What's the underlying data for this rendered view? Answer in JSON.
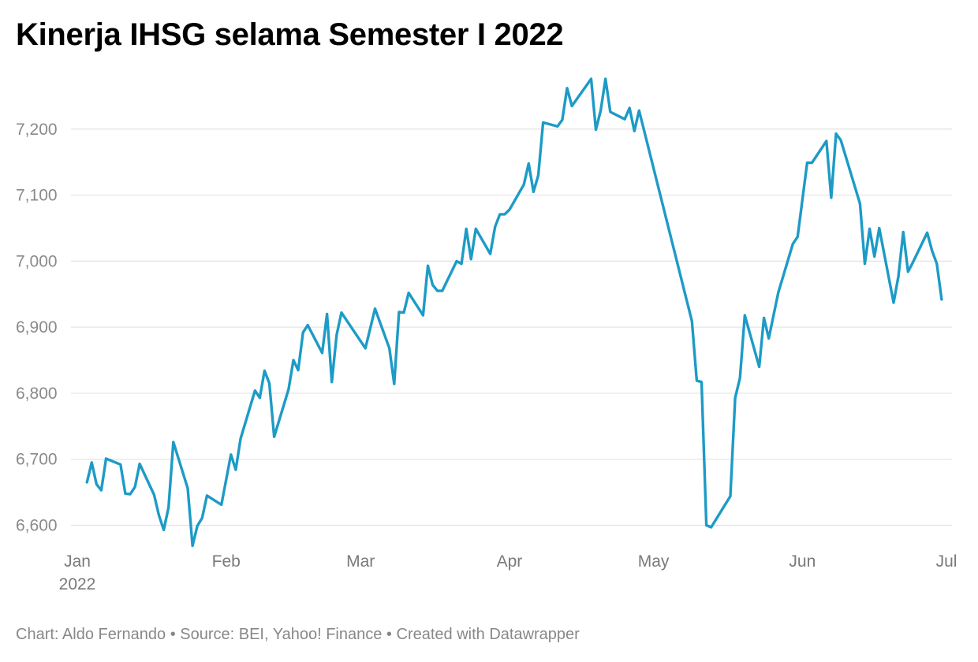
{
  "title": "Kinerja IHSG selama Semester I 2022",
  "footer": {
    "chart_credit": "Chart: Aldo Fernando",
    "source": "Source: BEI, Yahoo! Finance",
    "made_with": "Created with Datawrapper",
    "separator": "•"
  },
  "colors": {
    "line": "#1d9bc6",
    "grid": "#e3e3e3",
    "tick_text": "#8a8a8a"
  },
  "chart_data": {
    "type": "line",
    "title": "Kinerja IHSG selama Semester I 2022",
    "xlabel": "",
    "ylabel": "",
    "ylim": [
      6560,
      7300
    ],
    "xlim": [
      "2022-01-01",
      "2022-07-01"
    ],
    "grid": true,
    "yticks": [
      6600,
      6700,
      6800,
      6900,
      7000,
      7100,
      7200
    ],
    "ytick_labels": [
      "6,600",
      "6,700",
      "6,800",
      "6,900",
      "7,000",
      "7,100",
      "7,200"
    ],
    "xticks": [
      {
        "date": "2022-01-01",
        "label": "Jan",
        "sublabel": "2022"
      },
      {
        "date": "2022-02-01",
        "label": "Feb",
        "sublabel": ""
      },
      {
        "date": "2022-03-01",
        "label": "Mar",
        "sublabel": ""
      },
      {
        "date": "2022-04-01",
        "label": "Apr",
        "sublabel": ""
      },
      {
        "date": "2022-05-01",
        "label": "May",
        "sublabel": ""
      },
      {
        "date": "2022-06-01",
        "label": "Jun",
        "sublabel": ""
      },
      {
        "date": "2022-07-01",
        "label": "Jul",
        "sublabel": ""
      }
    ],
    "series": [
      {
        "dates": [
          "2022-01-03",
          "2022-01-04",
          "2022-01-05",
          "2022-01-06",
          "2022-01-07",
          "2022-01-10",
          "2022-01-11",
          "2022-01-12",
          "2022-01-13",
          "2022-01-14",
          "2022-01-17",
          "2022-01-18",
          "2022-01-19",
          "2022-01-20",
          "2022-01-21",
          "2022-01-24",
          "2022-01-25",
          "2022-01-26",
          "2022-01-27",
          "2022-01-28",
          "2022-01-31",
          "2022-02-02",
          "2022-02-03",
          "2022-02-04",
          "2022-02-07",
          "2022-02-08",
          "2022-02-09",
          "2022-02-10",
          "2022-02-11",
          "2022-02-14",
          "2022-02-15",
          "2022-02-16",
          "2022-02-17",
          "2022-02-18",
          "2022-02-21",
          "2022-02-22",
          "2022-02-23",
          "2022-02-24",
          "2022-02-25",
          "2022-03-02",
          "2022-03-04",
          "2022-03-07",
          "2022-03-08",
          "2022-03-09",
          "2022-03-10",
          "2022-03-11",
          "2022-03-14",
          "2022-03-15",
          "2022-03-16",
          "2022-03-17",
          "2022-03-18",
          "2022-03-21",
          "2022-03-22",
          "2022-03-23",
          "2022-03-24",
          "2022-03-25",
          "2022-03-28",
          "2022-03-29",
          "2022-03-30",
          "2022-03-31",
          "2022-04-01",
          "2022-04-04",
          "2022-04-05",
          "2022-04-06",
          "2022-04-07",
          "2022-04-08",
          "2022-04-11",
          "2022-04-12",
          "2022-04-13",
          "2022-04-14",
          "2022-04-18",
          "2022-04-19",
          "2022-04-20",
          "2022-04-21",
          "2022-04-22",
          "2022-04-25",
          "2022-04-26",
          "2022-04-27",
          "2022-04-28",
          "2022-05-09",
          "2022-05-10",
          "2022-05-11",
          "2022-05-12",
          "2022-05-13",
          "2022-05-17",
          "2022-05-18",
          "2022-05-19",
          "2022-05-20",
          "2022-05-23",
          "2022-05-24",
          "2022-05-25",
          "2022-05-27",
          "2022-05-30",
          "2022-05-31",
          "2022-06-02",
          "2022-06-03",
          "2022-06-06",
          "2022-06-07",
          "2022-06-08",
          "2022-06-09",
          "2022-06-13",
          "2022-06-14",
          "2022-06-15",
          "2022-06-16",
          "2022-06-17",
          "2022-06-20",
          "2022-06-21",
          "2022-06-22",
          "2022-06-23",
          "2022-06-24",
          "2022-06-27",
          "2022-06-28",
          "2022-06-29",
          "2022-06-30"
        ],
        "values": [
          6665,
          6695,
          6662,
          6653,
          6701,
          6692,
          6648,
          6647,
          6658,
          6693,
          6646,
          6615,
          6593,
          6627,
          6726,
          6656,
          6569,
          6599,
          6611,
          6645,
          6631,
          6707,
          6684,
          6731,
          6804,
          6793,
          6834,
          6815,
          6734,
          6806,
          6850,
          6835,
          6892,
          6903,
          6861,
          6920,
          6817,
          6888,
          6922,
          6868,
          6928,
          6868,
          6814,
          6923,
          6922,
          6952,
          6918,
          6993,
          6964,
          6955,
          6955,
          7000,
          6996,
          7049,
          7003,
          7049,
          7011,
          7052,
          7071,
          7071,
          7078,
          7116,
          7148,
          7105,
          7130,
          7210,
          7204,
          7214,
          7262,
          7235,
          7276,
          7199,
          7228,
          7276,
          7226,
          7215,
          7232,
          7197,
          7228,
          6909,
          6819,
          6817,
          6600,
          6597,
          6644,
          6793,
          6823,
          6918,
          6840,
          6914,
          6883,
          6953,
          7026,
          7037,
          7149,
          7149,
          7182,
          7096,
          7193,
          7183,
          7087,
          6996,
          7049,
          7007,
          7050,
          6937,
          6977,
          7044,
          6984,
          6998,
          7043,
          7016,
          6996,
          6942
        ]
      }
    ]
  }
}
